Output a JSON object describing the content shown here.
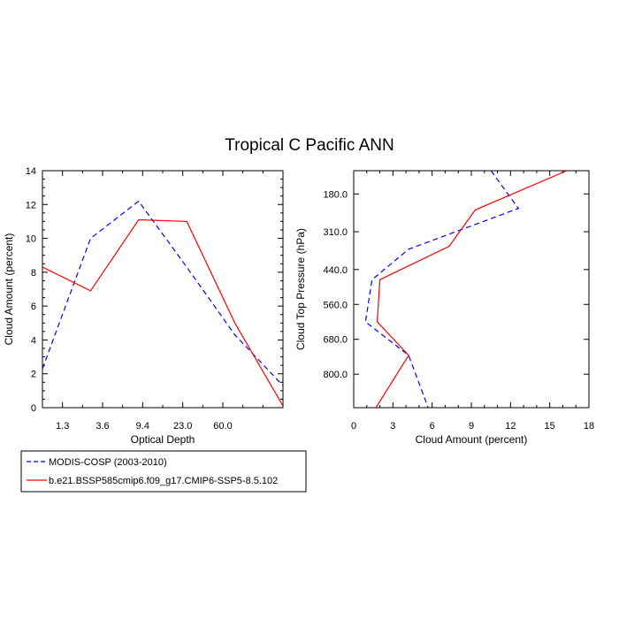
{
  "title": "Tropical C Pacific ANN",
  "colors": {
    "obs": "#0000ff",
    "model": "#ff0000",
    "axis": "#000000"
  },
  "legend": [
    {
      "label": "MODIS-COSP (2003-2010)",
      "style": "dashed",
      "color": "#0000ff"
    },
    {
      "label": "b.e21.BSSP585cmip6.f09_g17.CMIP6-SSP5-8.5.102",
      "style": "solid",
      "color": "#ff0000"
    }
  ],
  "chart_data": [
    {
      "type": "line",
      "panel": "left",
      "xlabel": "Optical Depth",
      "ylabel": "Cloud Amount (percent)",
      "xlim": [
        0,
        6
      ],
      "ylim": [
        0,
        14
      ],
      "xticks": [
        {
          "v": 0.5,
          "label": "1.3"
        },
        {
          "v": 1.5,
          "label": "3.6"
        },
        {
          "v": 2.5,
          "label": "9.4"
        },
        {
          "v": 3.5,
          "label": "23.0"
        },
        {
          "v": 4.5,
          "label": "60.0"
        }
      ],
      "yticks": [
        {
          "v": 0,
          "label": "0"
        },
        {
          "v": 2,
          "label": "2"
        },
        {
          "v": 4,
          "label": "4"
        },
        {
          "v": 6,
          "label": "6"
        },
        {
          "v": 8,
          "label": "8"
        },
        {
          "v": 10,
          "label": "10"
        },
        {
          "v": 12,
          "label": "12"
        },
        {
          "v": 14,
          "label": "14"
        }
      ],
      "series": [
        {
          "name": "MODIS-COSP (2003-2010)",
          "x": [
            0,
            1.2,
            2.4,
            3.6,
            4.8,
            6
          ],
          "y": [
            2.3,
            10.0,
            12.2,
            8.3,
            4.3,
            1.3
          ]
        },
        {
          "name": "b.e21.BSSP585cmip6.f09_g17.CMIP6-SSP5-8.5.102",
          "x": [
            0,
            1.2,
            2.4,
            3.6,
            4.8,
            6
          ],
          "y": [
            8.3,
            6.9,
            11.1,
            11.0,
            5.0,
            0.1
          ]
        }
      ]
    },
    {
      "type": "line",
      "panel": "right",
      "xlabel": "Cloud Amount (percent)",
      "ylabel": "Cloud Top Pressure (hPa)",
      "xlim": [
        0,
        18
      ],
      "ylim": [
        100,
        915
      ],
      "xticks": [
        {
          "v": 0,
          "label": "0"
        },
        {
          "v": 3,
          "label": "3"
        },
        {
          "v": 6,
          "label": "6"
        },
        {
          "v": 9,
          "label": "9"
        },
        {
          "v": 12,
          "label": "12"
        },
        {
          "v": 15,
          "label": "15"
        },
        {
          "v": 18,
          "label": "18"
        }
      ],
      "yticks": [
        {
          "v": 180,
          "label": "180.0"
        },
        {
          "v": 310,
          "label": "310.0"
        },
        {
          "v": 440,
          "label": "440.0"
        },
        {
          "v": 560,
          "label": "560.0"
        },
        {
          "v": 680,
          "label": "680.0"
        },
        {
          "v": 800,
          "label": "800.0"
        }
      ],
      "series": [
        {
          "name": "MODIS-COSP (2003-2010)",
          "x": [
            10.5,
            12.6,
            4.2,
            1.4,
            0.9,
            4.2,
            5.7
          ],
          "y": [
            100,
            230,
            370,
            475,
            620,
            735,
            915
          ]
        },
        {
          "name": "b.e21.BSSP585cmip6.f09_g17.CMIP6-SSP5-8.5.102",
          "x": [
            16.3,
            9.3,
            7.3,
            2.0,
            1.8,
            4.2,
            1.7
          ],
          "y": [
            100,
            235,
            360,
            475,
            620,
            735,
            915
          ]
        }
      ]
    }
  ]
}
